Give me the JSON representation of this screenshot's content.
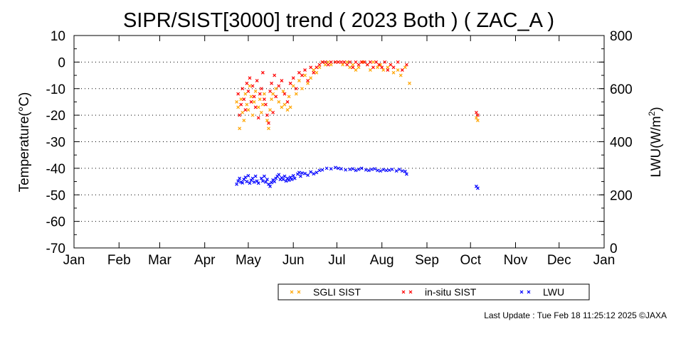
{
  "chart_data": {
    "type": "scatter",
    "title": "SIPR/SIST[3000] trend ( 2023 Both ) ( ZAC_A )",
    "ylabel": "Temperature(°C)",
    "y2label_main": "LWU(W/m",
    "y2label_sup": "2",
    "y2label_close": ")",
    "x_ticks": [
      "Jan",
      "Feb",
      "Mar",
      "Apr",
      "May",
      "Jun",
      "Jul",
      "Aug",
      "Sep",
      "Oct",
      "Nov",
      "Dec",
      "Jan"
    ],
    "xlim_day_of_year": [
      1,
      366
    ],
    "ylim": [
      -70,
      10
    ],
    "yticks": [
      10,
      0,
      -10,
      -20,
      -30,
      -40,
      -50,
      -60,
      -70
    ],
    "y2lim": [
      0,
      800
    ],
    "y2ticks": [
      800,
      600,
      400,
      200,
      0
    ],
    "grid": "horizontal dotted at every major y tick",
    "legend_position": "bottom-right, below the plot",
    "series": [
      {
        "name": "SGLI SIST",
        "color": "#ffa500",
        "axis": "left",
        "points": [
          [
            113,
            -15
          ],
          [
            114,
            -17
          ],
          [
            115,
            -25
          ],
          [
            116,
            -14
          ],
          [
            117,
            -19
          ],
          [
            118,
            -22
          ],
          [
            119,
            -12
          ],
          [
            120,
            -16
          ],
          [
            121,
            -18
          ],
          [
            122,
            -9
          ],
          [
            123,
            -13
          ],
          [
            124,
            -20
          ],
          [
            125,
            -15
          ],
          [
            126,
            -11
          ],
          [
            128,
            -17
          ],
          [
            129,
            -14
          ],
          [
            130,
            -19
          ],
          [
            131,
            -16
          ],
          [
            132,
            -12
          ],
          [
            134,
            -22
          ],
          [
            135,
            -25
          ],
          [
            136,
            -18
          ],
          [
            137,
            -14
          ],
          [
            138,
            -12
          ],
          [
            140,
            -10
          ],
          [
            142,
            -15
          ],
          [
            144,
            -17
          ],
          [
            145,
            -11
          ],
          [
            146,
            -16
          ],
          [
            148,
            -18
          ],
          [
            149,
            -13
          ],
          [
            150,
            -17
          ],
          [
            152,
            -9
          ],
          [
            154,
            -12
          ],
          [
            156,
            -7
          ],
          [
            158,
            -10
          ],
          [
            160,
            -5
          ],
          [
            162,
            -8
          ],
          [
            164,
            -6
          ],
          [
            166,
            -3
          ],
          [
            168,
            -4
          ],
          [
            170,
            -2
          ],
          [
            172,
            0
          ],
          [
            174,
            -1
          ],
          [
            176,
            0
          ],
          [
            178,
            -1
          ],
          [
            181,
            0
          ],
          [
            183,
            0
          ],
          [
            186,
            -1
          ],
          [
            189,
            0
          ],
          [
            191,
            -2
          ],
          [
            193,
            -1
          ],
          [
            195,
            -3
          ],
          [
            197,
            -2
          ],
          [
            200,
            0
          ],
          [
            203,
            -1
          ],
          [
            205,
            -3
          ],
          [
            207,
            0
          ],
          [
            210,
            -2
          ],
          [
            212,
            -1
          ],
          [
            214,
            -3
          ],
          [
            217,
            -2
          ],
          [
            219,
            -1
          ],
          [
            221,
            -4
          ],
          [
            224,
            -3
          ],
          [
            226,
            -5
          ],
          [
            229,
            -2
          ],
          [
            232,
            -8
          ],
          [
            278,
            -21
          ],
          [
            279,
            -22
          ]
        ]
      },
      {
        "name": "in-situ SIST",
        "color": "#ff0000",
        "axis": "left",
        "points": [
          [
            114,
            -12
          ],
          [
            115,
            -20
          ],
          [
            116,
            -16
          ],
          [
            117,
            -10
          ],
          [
            118,
            -14
          ],
          [
            119,
            -18
          ],
          [
            120,
            -8
          ],
          [
            121,
            -11
          ],
          [
            122,
            -6
          ],
          [
            123,
            -15
          ],
          [
            124,
            -9
          ],
          [
            125,
            -13
          ],
          [
            126,
            -17
          ],
          [
            127,
            -7
          ],
          [
            128,
            -21
          ],
          [
            129,
            -12
          ],
          [
            130,
            -10
          ],
          [
            131,
            -4
          ],
          [
            132,
            -14
          ],
          [
            133,
            -16
          ],
          [
            134,
            -20
          ],
          [
            135,
            -23
          ],
          [
            136,
            -11
          ],
          [
            137,
            -8
          ],
          [
            138,
            -19
          ],
          [
            139,
            -5
          ],
          [
            140,
            -13
          ],
          [
            142,
            -9
          ],
          [
            144,
            -7
          ],
          [
            146,
            -12
          ],
          [
            148,
            -15
          ],
          [
            150,
            -8
          ],
          [
            152,
            -6
          ],
          [
            154,
            -10
          ],
          [
            156,
            -4
          ],
          [
            158,
            -5
          ],
          [
            160,
            -3
          ],
          [
            162,
            -7
          ],
          [
            164,
            -2
          ],
          [
            166,
            -4
          ],
          [
            168,
            -2
          ],
          [
            170,
            -1
          ],
          [
            172,
            0
          ],
          [
            174,
            0
          ],
          [
            176,
            -1
          ],
          [
            178,
            0
          ],
          [
            181,
            0
          ],
          [
            183,
            0
          ],
          [
            185,
            0
          ],
          [
            187,
            0
          ],
          [
            189,
            -1
          ],
          [
            191,
            0
          ],
          [
            193,
            -2
          ],
          [
            195,
            0
          ],
          [
            197,
            -1
          ],
          [
            199,
            0
          ],
          [
            201,
            0
          ],
          [
            203,
            -1
          ],
          [
            205,
            0
          ],
          [
            207,
            -2
          ],
          [
            209,
            0
          ],
          [
            211,
            -1
          ],
          [
            213,
            -2
          ],
          [
            215,
            0
          ],
          [
            217,
            -3
          ],
          [
            219,
            -1
          ],
          [
            221,
            -2
          ],
          [
            224,
            0
          ],
          [
            227,
            -3
          ],
          [
            230,
            -1
          ],
          [
            278,
            -19
          ],
          [
            279,
            -20
          ]
        ]
      },
      {
        "name": "LWU",
        "color": "#0000ff",
        "axis": "right",
        "points": [
          [
            113,
            240
          ],
          [
            114,
            252
          ],
          [
            115,
            262
          ],
          [
            116,
            248
          ],
          [
            117,
            245
          ],
          [
            118,
            258
          ],
          [
            119,
            266
          ],
          [
            120,
            250
          ],
          [
            121,
            272
          ],
          [
            122,
            244
          ],
          [
            123,
            255
          ],
          [
            124,
            262
          ],
          [
            125,
            248
          ],
          [
            126,
            270
          ],
          [
            127,
            252
          ],
          [
            128,
            244
          ],
          [
            130,
            262
          ],
          [
            131,
            252
          ],
          [
            132,
            270
          ],
          [
            133,
            248
          ],
          [
            134,
            258
          ],
          [
            135,
            240
          ],
          [
            136,
            232
          ],
          [
            137,
            246
          ],
          [
            138,
            256
          ],
          [
            139,
            250
          ],
          [
            140,
            262
          ],
          [
            141,
            270
          ],
          [
            142,
            276
          ],
          [
            143,
            258
          ],
          [
            144,
            264
          ],
          [
            145,
            258
          ],
          [
            146,
            270
          ],
          [
            147,
            252
          ],
          [
            148,
            262
          ],
          [
            149,
            255
          ],
          [
            150,
            266
          ],
          [
            151,
            258
          ],
          [
            152,
            272
          ],
          [
            153,
            262
          ],
          [
            155,
            278
          ],
          [
            156,
            284
          ],
          [
            157,
            270
          ],
          [
            158,
            282
          ],
          [
            160,
            280
          ],
          [
            162,
            274
          ],
          [
            164,
            286
          ],
          [
            166,
            279
          ],
          [
            168,
            284
          ],
          [
            170,
            292
          ],
          [
            172,
            294
          ],
          [
            175,
            300
          ],
          [
            178,
            298
          ],
          [
            181,
            303
          ],
          [
            183,
            300
          ],
          [
            185,
            298
          ],
          [
            188,
            294
          ],
          [
            191,
            296
          ],
          [
            193,
            298
          ],
          [
            195,
            292
          ],
          [
            197,
            296
          ],
          [
            199,
            300
          ],
          [
            202,
            294
          ],
          [
            204,
            292
          ],
          [
            206,
            296
          ],
          [
            208,
            298
          ],
          [
            210,
            292
          ],
          [
            212,
            290
          ],
          [
            214,
            295
          ],
          [
            216,
            292
          ],
          [
            218,
            293
          ],
          [
            220,
            296
          ],
          [
            223,
            290
          ],
          [
            225,
            296
          ],
          [
            227,
            290
          ],
          [
            229,
            288
          ],
          [
            230,
            278
          ],
          [
            278,
            232
          ],
          [
            279,
            225
          ]
        ]
      }
    ]
  },
  "footer": {
    "last_update": "Last Update : Tue Feb 18 11:25:12 2025  ©JAXA"
  }
}
